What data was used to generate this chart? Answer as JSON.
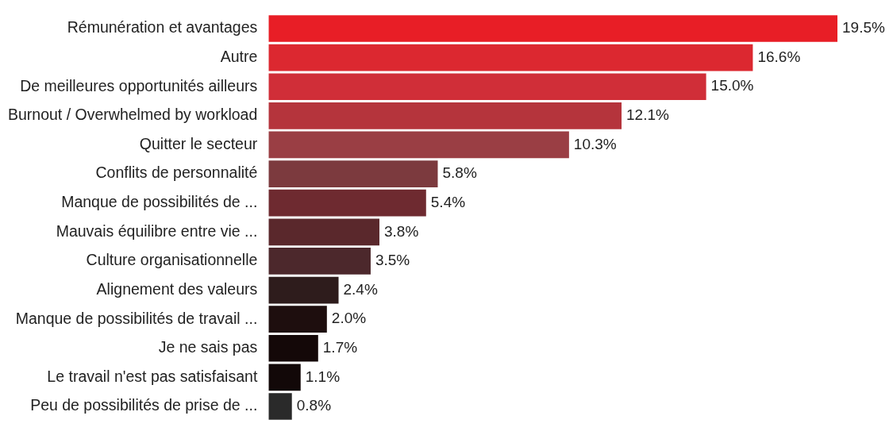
{
  "chart_data": {
    "type": "bar",
    "orientation": "horizontal",
    "categories": [
      "Rémunération et avantages",
      "Autre",
      "De meilleures opportunités ailleurs",
      "Burnout / Overwhelmed by workload",
      "Quitter le secteur",
      "Conflits de personnalité",
      "Manque de possibilités de ...",
      "Mauvais équilibre entre vie ...",
      "Culture organisationnelle",
      "Alignement des valeurs",
      "Manque de possibilités de travail ...",
      "Je ne sais pas",
      "Le travail n'est pas satisfaisant",
      "Peu de possibilités de prise de ..."
    ],
    "values": [
      19.5,
      16.6,
      15.0,
      12.1,
      10.3,
      5.8,
      5.4,
      3.8,
      3.5,
      2.4,
      2.0,
      1.7,
      1.1,
      0.8
    ],
    "colors": [
      "#e81e26",
      "#dc2830",
      "#d02e38",
      "#b5343c",
      "#9a3e44",
      "#7c3a3e",
      "#6e2a30",
      "#5a282c",
      "#4c282c",
      "#2e1c1c",
      "#1e0e0e",
      "#140808",
      "#120808",
      "#2a2a2a"
    ],
    "value_labels": [
      "19.5%",
      "16.6%",
      "15.0%",
      "12.1%",
      "10.3%",
      "5.8%",
      "5.4%",
      "3.8%",
      "3.5%",
      "2.4%",
      "2.0%",
      "1.7%",
      "1.1%",
      "0.8%"
    ],
    "legend": false
  }
}
